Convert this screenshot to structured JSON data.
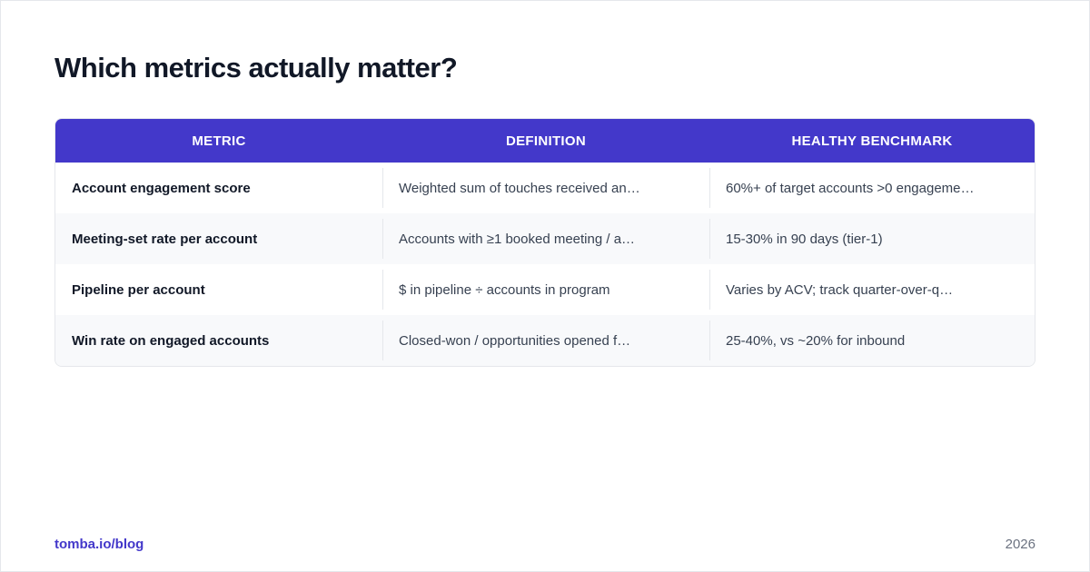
{
  "page": {
    "title": "Which metrics actually matter?"
  },
  "table": {
    "headers": [
      "METRIC",
      "DEFINITION",
      "HEALTHY BENCHMARK"
    ],
    "rows": [
      {
        "metric": "Account engagement score",
        "definition": "Weighted sum of touches received an…",
        "benchmark": "60%+ of target accounts >0 engageme…"
      },
      {
        "metric": "Meeting-set rate per account",
        "definition": "Accounts with ≥1 booked meeting / a…",
        "benchmark": "15-30% in 90 days (tier-1)"
      },
      {
        "metric": "Pipeline per account",
        "definition": "$ in pipeline ÷ accounts in program",
        "benchmark": "Varies by ACV; track quarter-over-q…"
      },
      {
        "metric": "Win rate on engaged accounts",
        "definition": "Closed-won / opportunities opened f…",
        "benchmark": "25-40%, vs ~20% for inbound"
      }
    ]
  },
  "footer": {
    "link": "tomba.io/blog",
    "year": "2026"
  },
  "colors": {
    "accent": "#4338ca",
    "title": "#111827",
    "body_text": "#374151",
    "muted": "#6b7280",
    "row_alt": "#f8f9fb",
    "border": "#e5e7eb"
  }
}
